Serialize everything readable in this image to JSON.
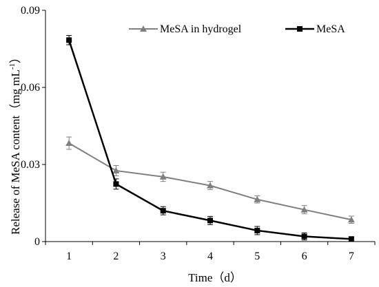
{
  "chart_data": {
    "type": "line",
    "xlabel": "Time（d）",
    "ylabel": {
      "main": "Release of MeSA content（mg mL",
      "superscript": "-1",
      "close": "）"
    },
    "x": [
      1,
      2,
      3,
      4,
      5,
      6,
      7
    ],
    "x_ticks": [
      "1",
      "2",
      "3",
      "4",
      "5",
      "6",
      "7"
    ],
    "ylim": [
      0,
      0.09
    ],
    "y_ticks": [
      0,
      0.03,
      0.06,
      0.09
    ],
    "y_tick_labels": [
      "0",
      "0.03",
      "0.06",
      "0.09"
    ],
    "grid": false,
    "legend_position": "top-right",
    "series": [
      {
        "name": "MeSA in hydrogel",
        "color": "#7f7f7f",
        "marker": "triangle",
        "values": [
          0.0383,
          0.0276,
          0.0252,
          0.0218,
          0.0164,
          0.0124,
          0.0085
        ],
        "errors": [
          0.0024,
          0.002,
          0.0018,
          0.0016,
          0.0014,
          0.0016,
          0.0014
        ]
      },
      {
        "name": "MeSA",
        "color": "#000000",
        "marker": "square",
        "values": [
          0.0784,
          0.0224,
          0.012,
          0.0082,
          0.0043,
          0.002,
          0.001
        ],
        "errors": [
          0.0018,
          0.002,
          0.0016,
          0.0016,
          0.0016,
          0.0014,
          0.0008
        ]
      }
    ]
  }
}
